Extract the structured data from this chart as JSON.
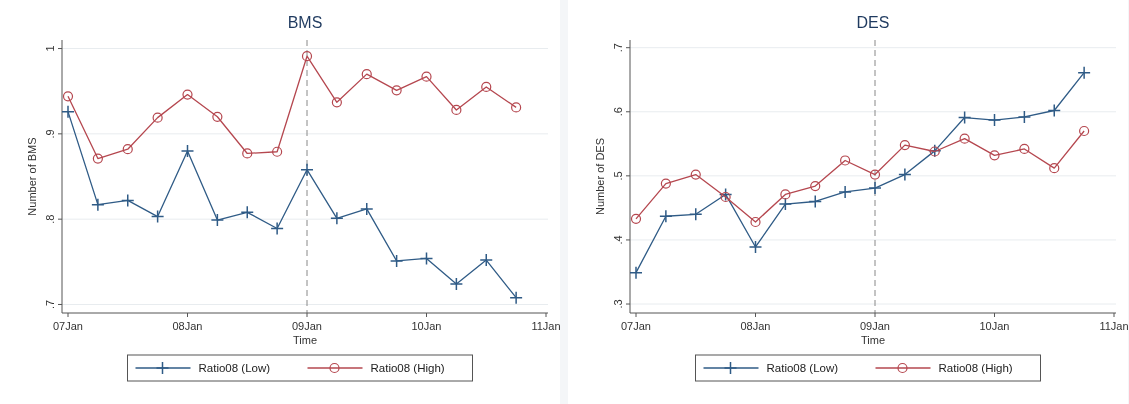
{
  "chart_data": [
    {
      "type": "line",
      "title": "BMS",
      "xlabel": "Time",
      "ylabel": "Number of BMS",
      "categories": [
        "07Jan",
        null,
        null,
        null,
        "08Jan",
        null,
        null,
        null,
        "09Jan",
        null,
        null,
        null,
        "10Jan",
        null,
        null,
        null,
        "11Jan"
      ],
      "series": [
        {
          "name": "Ratio08 (Low)",
          "color": "#2f5b86",
          "marker": "cross",
          "values": [
            0.926,
            0.817,
            0.822,
            0.803,
            0.88,
            0.799,
            0.808,
            0.789,
            0.858,
            0.801,
            0.812,
            0.751,
            0.754,
            0.724,
            0.752,
            0.708,
            null
          ]
        },
        {
          "name": "Ratio08 (High)",
          "color": "#b5474f",
          "marker": "circle",
          "values": [
            0.944,
            0.871,
            0.882,
            0.919,
            0.946,
            0.92,
            0.877,
            0.879,
            0.991,
            0.937,
            0.97,
            0.951,
            0.967,
            0.928,
            0.955,
            0.931,
            null
          ]
        }
      ],
      "ylim": [
        0.69,
        1.01
      ],
      "yticks": [
        {
          "value": 0.7,
          "label": ".7"
        },
        {
          "value": 0.8,
          "label": ".8"
        },
        {
          "value": 0.9,
          "label": ".9"
        },
        {
          "value": 1,
          "label": "1"
        }
      ],
      "grid": "y",
      "legend": "bottom",
      "ref_lines": [
        {
          "axis": "x",
          "value": "09Jan",
          "line_style": "dashed",
          "color": "#888888"
        }
      ]
    },
    {
      "type": "line",
      "title": "DES",
      "xlabel": "Time",
      "ylabel": "Number of DES",
      "categories": [
        "07Jan",
        null,
        null,
        null,
        "08Jan",
        null,
        null,
        null,
        "09Jan",
        null,
        null,
        null,
        "10Jan",
        null,
        null,
        null,
        "11Jan"
      ],
      "series": [
        {
          "name": "Ratio08 (Low)",
          "color": "#2f5b86",
          "marker": "cross",
          "values": [
            0.349,
            0.437,
            0.44,
            0.471,
            0.389,
            0.456,
            0.46,
            0.475,
            0.481,
            0.502,
            0.539,
            0.591,
            0.587,
            0.592,
            0.602,
            0.661,
            null
          ]
        },
        {
          "name": "Ratio08 (High)",
          "color": "#b5474f",
          "marker": "circle",
          "values": [
            0.433,
            0.488,
            0.502,
            0.467,
            0.428,
            0.471,
            0.484,
            0.524,
            0.502,
            0.548,
            0.538,
            0.558,
            0.532,
            0.542,
            0.512,
            0.57,
            null
          ]
        }
      ],
      "ylim": [
        0.286,
        0.712
      ],
      "yticks": [
        {
          "value": 0.3,
          "label": ".3"
        },
        {
          "value": 0.4,
          "label": ".4"
        },
        {
          "value": 0.5,
          "label": ".5"
        },
        {
          "value": 0.6,
          "label": ".6"
        },
        {
          "value": 0.7,
          "label": ".7"
        }
      ],
      "grid": "y",
      "legend": "bottom",
      "ref_lines": [
        {
          "axis": "x",
          "value": "09Jan",
          "line_style": "dashed",
          "color": "#888888"
        }
      ]
    }
  ]
}
